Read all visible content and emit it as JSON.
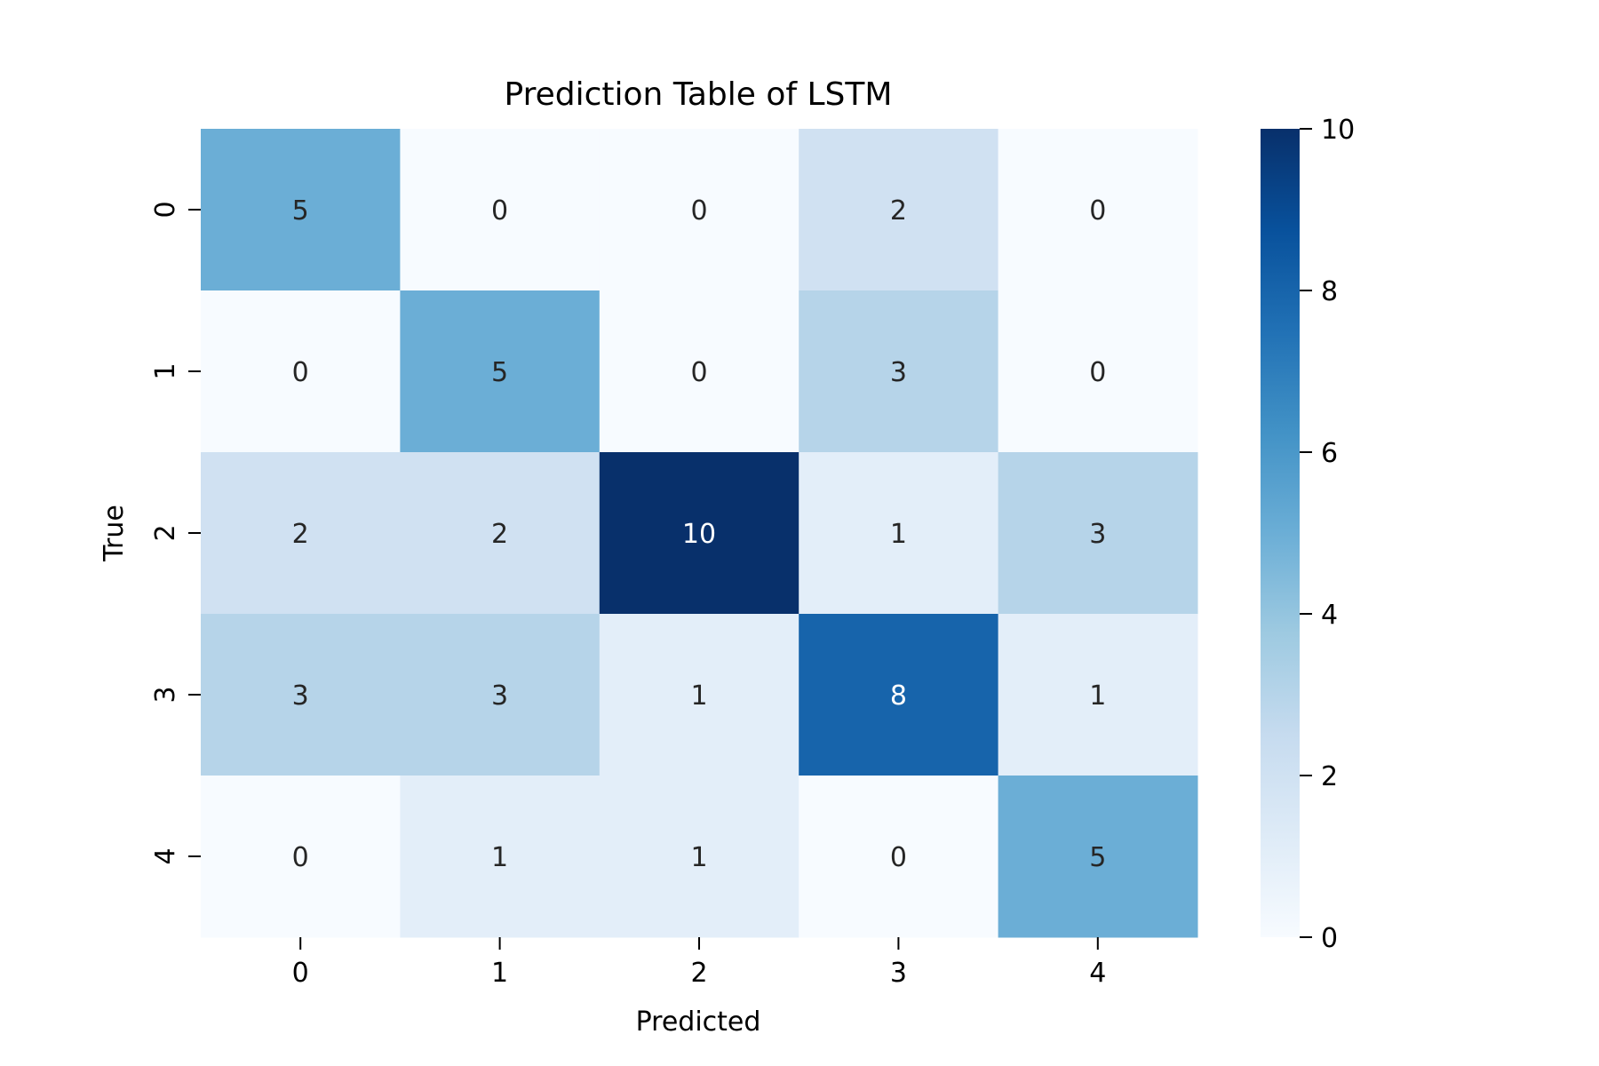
{
  "chart_data": {
    "type": "heatmap",
    "title": "Prediction Table of LSTM",
    "xlabel": "Predicted",
    "ylabel": "True",
    "x_categories": [
      "0",
      "1",
      "2",
      "3",
      "4"
    ],
    "y_categories": [
      "0",
      "1",
      "2",
      "3",
      "4"
    ],
    "values": [
      [
        5,
        0,
        0,
        2,
        0
      ],
      [
        0,
        5,
        0,
        3,
        0
      ],
      [
        2,
        2,
        10,
        1,
        3
      ],
      [
        3,
        3,
        1,
        8,
        1
      ],
      [
        0,
        1,
        1,
        0,
        5
      ]
    ],
    "colorbar": {
      "min": 0,
      "max": 10,
      "ticks": [
        "0",
        "2",
        "4",
        "6",
        "8",
        "10"
      ]
    },
    "colormap": "Blues",
    "grid": false,
    "annotations": true
  }
}
